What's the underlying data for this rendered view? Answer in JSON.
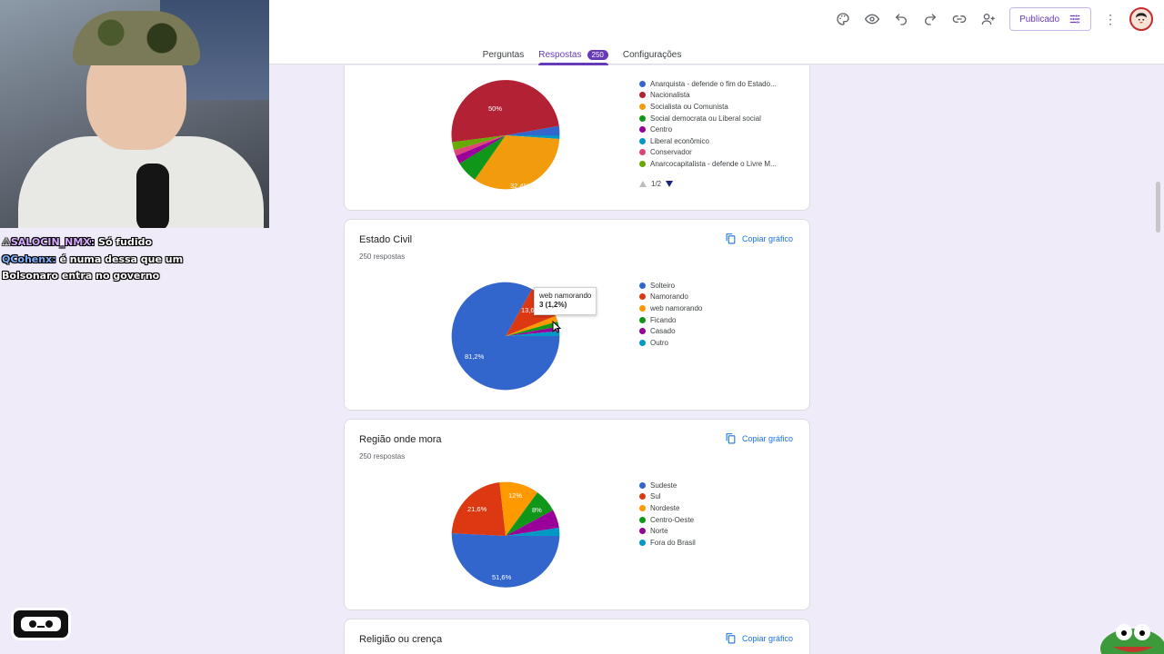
{
  "header": {
    "tabs": [
      {
        "label": "Perguntas"
      },
      {
        "label": "Respostas",
        "badge": "250"
      },
      {
        "label": "Configurações"
      }
    ],
    "publish_label": "Publicado",
    "icons": [
      "palette-icon",
      "eye-icon",
      "undo-icon",
      "redo-icon",
      "link-icon",
      "add-person-icon",
      "more-vert-icon"
    ]
  },
  "cards": {
    "political": {
      "legend": [
        {
          "label": "Anarquista - defende o fim do Estado...",
          "color": "#3366cc"
        },
        {
          "label": "Nacionalista",
          "color": "#b22234"
        },
        {
          "label": "Socialista ou Comunista",
          "color": "#f29b0c"
        },
        {
          "label": "Social democrata ou Liberal social",
          "color": "#109618"
        },
        {
          "label": "Centro",
          "color": "#990099"
        },
        {
          "label": "Liberal econômico",
          "color": "#0099c6"
        },
        {
          "label": "Conservador",
          "color": "#dd4477"
        },
        {
          "label": "Anarcocapitalista - defende o Livre M...",
          "color": "#66aa00"
        }
      ],
      "pager": "1/2",
      "pie_labels": {
        "nacionalista": "50%",
        "socialista": "32,4%"
      }
    },
    "estado_civil": {
      "title": "Estado Civil",
      "subtitle": "250 respostas",
      "copy_label": "Copiar gráfico",
      "legend": [
        {
          "label": "Solteiro",
          "color": "#3366cc"
        },
        {
          "label": "Namorando",
          "color": "#dc3912"
        },
        {
          "label": "web namorando",
          "color": "#ff9900"
        },
        {
          "label": "Ficando",
          "color": "#109618"
        },
        {
          "label": "Casado",
          "color": "#990099"
        },
        {
          "label": "Outro",
          "color": "#0099c6"
        }
      ],
      "pie_labels": {
        "solteiro": "81,2%",
        "namorando": "13,6"
      },
      "tooltip": {
        "line1": "web namorando",
        "line2": "3 (1,2%)"
      }
    },
    "regiao": {
      "title": "Região onde mora",
      "subtitle": "250 respostas",
      "copy_label": "Copiar gráfico",
      "legend": [
        {
          "label": "Sudeste",
          "color": "#3366cc"
        },
        {
          "label": "Sul",
          "color": "#dc3912"
        },
        {
          "label": "Nordeste",
          "color": "#ff9900"
        },
        {
          "label": "Centro-Oeste",
          "color": "#109618"
        },
        {
          "label": "Norte",
          "color": "#990099"
        },
        {
          "label": "Fora do Brasil",
          "color": "#0099c6"
        }
      ],
      "pie_labels": {
        "sudeste": "51,6%",
        "sul": "21,6%",
        "nordeste": "12%",
        "centro_oeste": "8%"
      }
    },
    "religiao": {
      "title": "Religião ou crença",
      "copy_label": "Copiar gráfico"
    }
  },
  "chat": {
    "messages": [
      {
        "user": "SALOCIN_NMX:",
        "text": "Só fudido"
      },
      {
        "user": "QCohenx:",
        "text": "é numa dessa que um"
      },
      {
        "user": "",
        "text": "Bolsonaro entra no governo"
      }
    ]
  }
}
